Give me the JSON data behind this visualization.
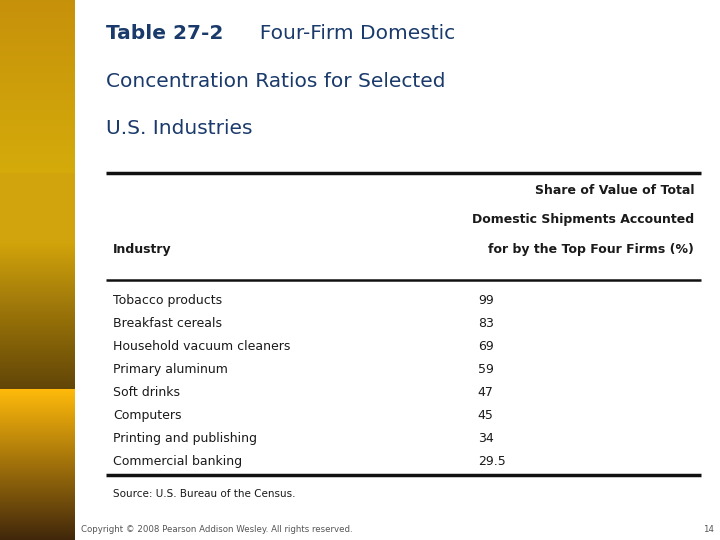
{
  "title_bold": "Table 27-2",
  "title_rest_line1": "  Four-Firm Domestic",
  "title_line2": "Concentration Ratios for Selected",
  "title_line3": "U.S. Industries",
  "col1_header": "Industry",
  "col2_header_line1": "Share of Value of Total",
  "col2_header_line2": "Domestic Shipments Accounted",
  "col2_header_line3": "for by the Top Four Firms (%)",
  "rows": [
    [
      "Tobacco products",
      "99"
    ],
    [
      "Breakfast cereals",
      "83"
    ],
    [
      "Household vacuum cleaners",
      "69"
    ],
    [
      "Primary aluminum",
      "59"
    ],
    [
      "Soft drinks",
      "47"
    ],
    [
      "Computers",
      "45"
    ],
    [
      "Printing and publishing",
      "34"
    ],
    [
      "Commercial banking",
      "29.5"
    ]
  ],
  "source": "Source: U.S. Bureau of the Census.",
  "copyright": "Copyright © 2008 Pearson Addison Wesley. All rights reserved.",
  "page_num": "14",
  "bg_color": "#ffffff",
  "title_color": "#1a3a6b",
  "text_color": "#1a1a1a",
  "thick_rule_color": "#111111",
  "thin_rule_color": "#333333",
  "strip_gold_top": "#d4a820",
  "strip_gold_mid": "#c08010",
  "strip_gold_bot": "#8a6010",
  "strip_dark": "#5a4008"
}
